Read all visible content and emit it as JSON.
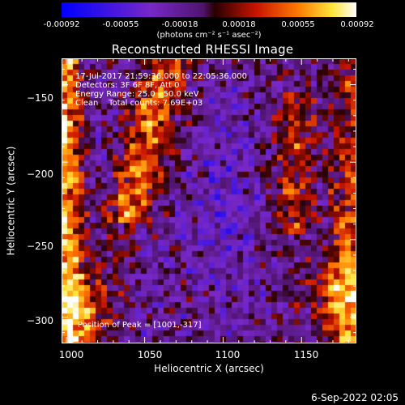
{
  "colorbar": {
    "tick_labels": [
      "-0.00092",
      "-0.00055",
      "-0.00018",
      "0.00018",
      "0.00055",
      "0.00092"
    ],
    "units": "(photons cm⁻² s⁻¹ asec⁻²)",
    "range": [
      -0.00092,
      0.00092
    ]
  },
  "title": "Reconstructed RHESSI Image",
  "info": {
    "time_range": "17-Jul-2017 21:59:36.000 to 22:05:36.000",
    "detectors": "Detectors: 3F 6F 8F, Att 0",
    "energy": "Energy Range: 25.0 - 50.0 keV",
    "clean": "Clean    Total counts: 7.69E+03"
  },
  "peak": "Position of Peak = [1001,-317]",
  "x_axis": {
    "label": "Heliocentric X (arcsec)",
    "ticks": [
      1000,
      1050,
      1100,
      1150
    ],
    "tick_labels": [
      "1000",
      "1050",
      "1100",
      "1150"
    ],
    "range": [
      997,
      1185
    ]
  },
  "y_axis": {
    "label": "Heliocentric Y (arcsec)",
    "ticks": [
      -150,
      -200,
      -250,
      -300
    ],
    "tick_labels": [
      "−150",
      "−200",
      "−250",
      "−300"
    ],
    "range": [
      -317,
      -133
    ]
  },
  "footer_date": "6-Sep-2022 02:05",
  "colormap": "rhessi-blue-purple-red-yellow-white"
}
